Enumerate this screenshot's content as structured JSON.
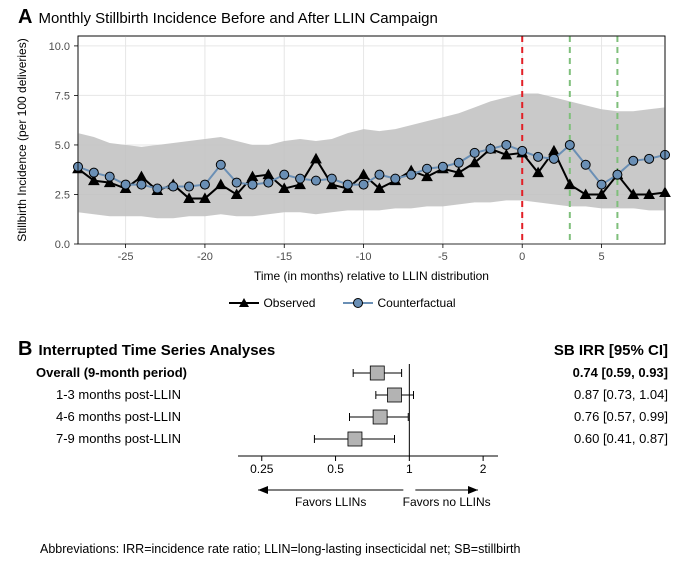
{
  "panelA": {
    "label": "A",
    "title": "Monthly Stillbirth Incidence Before and After LLIN Campaign",
    "type": "line",
    "x_axis": {
      "label": "Time (in months) relative to LLIN distribution",
      "ticks": [
        -25,
        -20,
        -15,
        -10,
        -5,
        0,
        5
      ],
      "lim": [
        -28,
        9
      ]
    },
    "y_axis": {
      "label": "Stillbirth Incidence (per 100 deliveries)",
      "ticks": [
        0.0,
        2.5,
        5.0,
        7.5,
        10.0
      ],
      "lim": [
        0,
        10.5
      ]
    },
    "background_color": "#ffffff",
    "grid_color": "#e6e6e6",
    "confidence_band": {
      "fill": "#bfbfbf",
      "opacity": 0.85,
      "lower": [
        1.6,
        1.5,
        1.4,
        1.4,
        1.4,
        1.3,
        1.3,
        1.4,
        1.4,
        1.5,
        1.4,
        1.4,
        1.5,
        1.6,
        1.6,
        1.5,
        1.6,
        1.7,
        1.7,
        1.7,
        1.8,
        1.8,
        1.9,
        1.9,
        2.0,
        2.1,
        2.1,
        2.2,
        2.2,
        2.1,
        2.0,
        1.9,
        1.9,
        1.8,
        1.8,
        1.8,
        1.7,
        1.7
      ],
      "upper": [
        5.6,
        5.4,
        5.1,
        5.0,
        4.9,
        5.0,
        5.1,
        5.2,
        5.3,
        5.4,
        5.2,
        5.0,
        5.0,
        5.2,
        5.3,
        5.2,
        5.3,
        5.6,
        5.8,
        5.7,
        5.8,
        6.0,
        6.2,
        6.4,
        6.6,
        6.9,
        7.2,
        7.4,
        7.6,
        7.6,
        7.4,
        7.2,
        7.0,
        6.8,
        6.7,
        6.7,
        6.8,
        6.9
      ]
    },
    "observed": {
      "label": "Observed",
      "color": "#000000",
      "width": 2,
      "marker": "triangle",
      "marker_size": 5,
      "y": [
        3.8,
        3.2,
        3.1,
        2.8,
        3.4,
        2.7,
        3.0,
        2.3,
        2.3,
        3.0,
        2.5,
        3.4,
        3.5,
        2.8,
        3.0,
        4.3,
        3.0,
        2.8,
        3.5,
        2.8,
        3.2,
        3.7,
        3.4,
        3.8,
        3.6,
        4.1,
        4.8,
        4.5,
        4.6,
        3.6,
        4.7,
        3.0,
        2.5,
        2.5,
        3.5,
        2.5,
        2.5,
        2.6
      ]
    },
    "counterfactual": {
      "label": "Counterfactual",
      "color": "#6a8fb5",
      "width": 2,
      "marker": "circle",
      "marker_size": 4.5,
      "stroke": "#000000",
      "y": [
        3.9,
        3.6,
        3.4,
        3.0,
        3.0,
        2.8,
        2.9,
        2.9,
        3.0,
        4.0,
        3.1,
        3.0,
        3.1,
        3.5,
        3.3,
        3.2,
        3.3,
        3.0,
        3.0,
        3.5,
        3.3,
        3.5,
        3.8,
        3.9,
        4.1,
        4.6,
        4.8,
        5.0,
        4.7,
        4.4,
        4.3,
        5.0,
        4.0,
        3.0,
        3.5,
        4.2,
        4.3,
        4.5
      ]
    },
    "vlines": [
      {
        "x": 0,
        "color": "#e21f26",
        "dash": "6,5",
        "width": 2
      },
      {
        "x": 3,
        "color": "#7fbf7b",
        "dash": "6,5",
        "width": 2
      },
      {
        "x": 6,
        "color": "#7fbf7b",
        "dash": "6,5",
        "width": 2
      }
    ]
  },
  "panelB": {
    "label": "B",
    "title": "Interrupted Time Series Analyses",
    "right_header": "SB IRR [95% CI]",
    "type": "forest",
    "x_ticks": [
      0.25,
      0.5,
      1,
      2
    ],
    "x_lim": [
      0.2,
      2.3
    ],
    "axis_arrow_left": "Favors LLINs",
    "axis_arrow_right": "Favors no LLINs",
    "marker_fill": "#b3b3b3",
    "marker_stroke": "#000000",
    "marker_size": 14,
    "rows": [
      {
        "label": "Overall (9-month period)",
        "bold": true,
        "est": 0.74,
        "lo": 0.59,
        "hi": 0.93,
        "display": "0.74 [0.59, 0.93]"
      },
      {
        "label": "1-3 months post-LLIN",
        "bold": false,
        "est": 0.87,
        "lo": 0.73,
        "hi": 1.04,
        "display": "0.87 [0.73, 1.04]"
      },
      {
        "label": "4-6 months post-LLIN",
        "bold": false,
        "est": 0.76,
        "lo": 0.57,
        "hi": 0.99,
        "display": "0.76 [0.57, 0.99]"
      },
      {
        "label": "7-9 months post-LLIN",
        "bold": false,
        "est": 0.6,
        "lo": 0.41,
        "hi": 0.87,
        "display": "0.60 [0.41, 0.87]"
      }
    ]
  },
  "footnote": "Abbreviations: IRR=incidence rate ratio; LLIN=long-lasting insecticidal net; SB=stillbirth"
}
